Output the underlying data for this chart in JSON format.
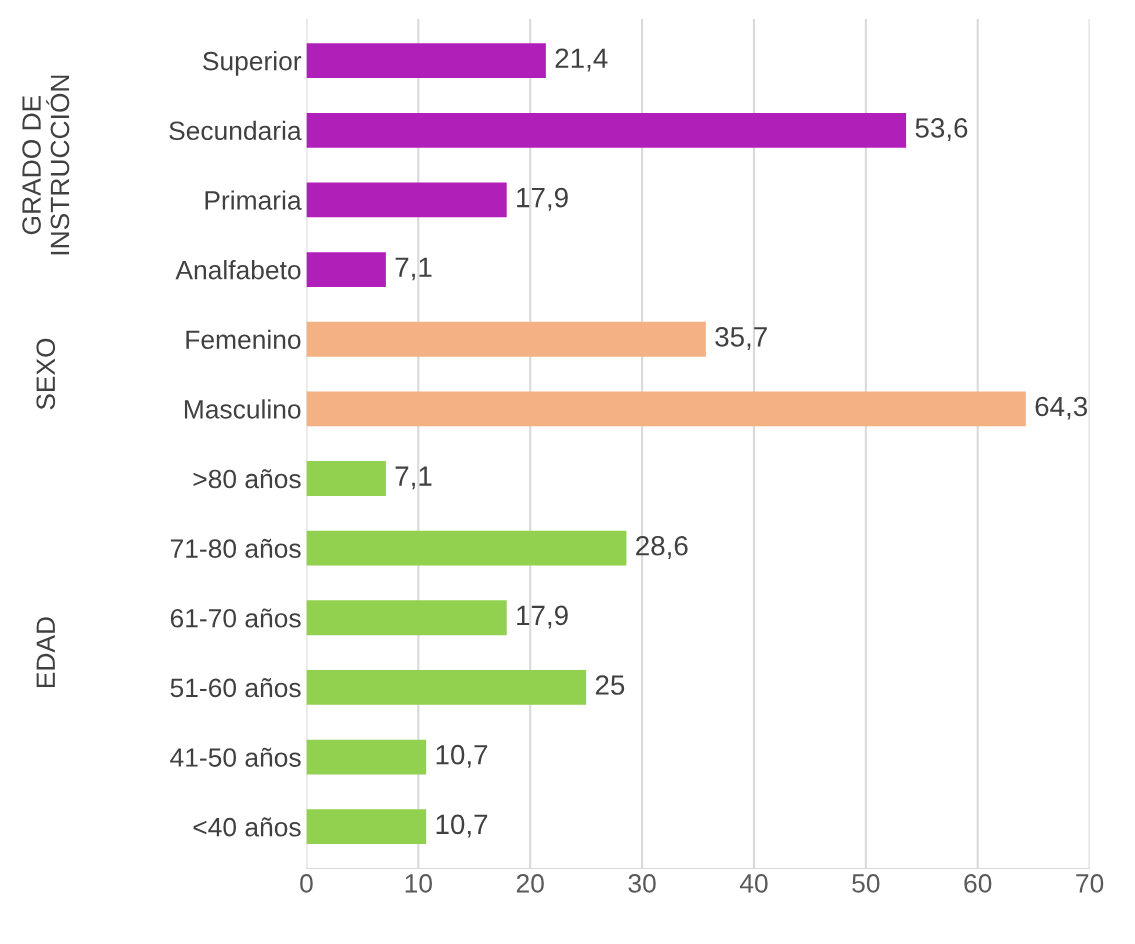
{
  "chart_data": {
    "type": "bar",
    "orientation": "horizontal",
    "categories": [
      "Superior",
      "Secundaria",
      "Primaria",
      "Analfabeto",
      "Femenino",
      "Masculino",
      ">80 años",
      "71-80 años",
      "61-70 años",
      "51-60 años",
      "41-50 años",
      "<40 años"
    ],
    "values": [
      21.4,
      53.6,
      17.9,
      7.1,
      35.7,
      64.3,
      7.1,
      28.6,
      17.9,
      25,
      10.7,
      10.7
    ],
    "value_labels": [
      "21,4",
      "53,6",
      "17,9",
      "7,1",
      "35,7",
      "64,3",
      "7,1",
      "28,6",
      "17,9",
      "25",
      "10,7",
      "10,7"
    ],
    "colors": [
      "#b01fb8",
      "#b01fb8",
      "#b01fb8",
      "#b01fb8",
      "#f4b183",
      "#f4b183",
      "#92d050",
      "#92d050",
      "#92d050",
      "#92d050",
      "#92d050",
      "#92d050"
    ],
    "annotations": [
      "GRADO DE\nINSTRUCCIÓN",
      "SEXO",
      "EDAD"
    ],
    "xlim": [
      0,
      70
    ],
    "xticks": [
      0,
      10,
      20,
      30,
      40,
      50,
      60,
      70
    ],
    "grid": "x"
  }
}
